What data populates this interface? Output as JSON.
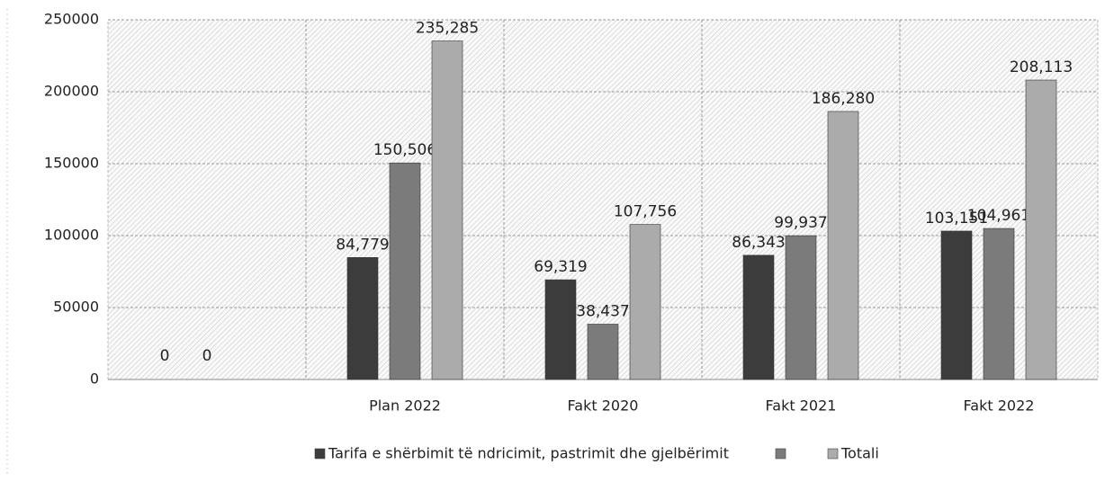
{
  "chart_data": {
    "type": "bar",
    "categories": [
      null,
      "Plan 2022",
      "Fakt 2020",
      "Fakt 2021",
      "Fakt 2022"
    ],
    "series": [
      {
        "name": "Tarifa e shërbimit të ndricimit, pastrimit dhe gjelbërimit",
        "color": "#3c3c3c",
        "values": [
          0,
          84779,
          69319,
          86343,
          103151
        ],
        "value_labels": [
          "0",
          "84,779",
          "69,319",
          "86,343",
          "103,151"
        ]
      },
      {
        "color": "#7b7b7b",
        "values": [
          0,
          150506,
          38437,
          99937,
          104961
        ],
        "value_labels": [
          "0",
          "150,506",
          "38,437",
          "99,937",
          "104,961"
        ]
      },
      {
        "name": "Totali",
        "color": "#ababab",
        "values": [
          null,
          235285,
          107756,
          186280,
          208113
        ],
        "value_labels": [
          null,
          "235,285",
          "107,756",
          "186,280",
          "208,113"
        ]
      }
    ],
    "ylim": [
      0,
      250000
    ],
    "yticks": [
      0,
      50000,
      100000,
      150000,
      200000,
      250000
    ],
    "grid": true
  }
}
